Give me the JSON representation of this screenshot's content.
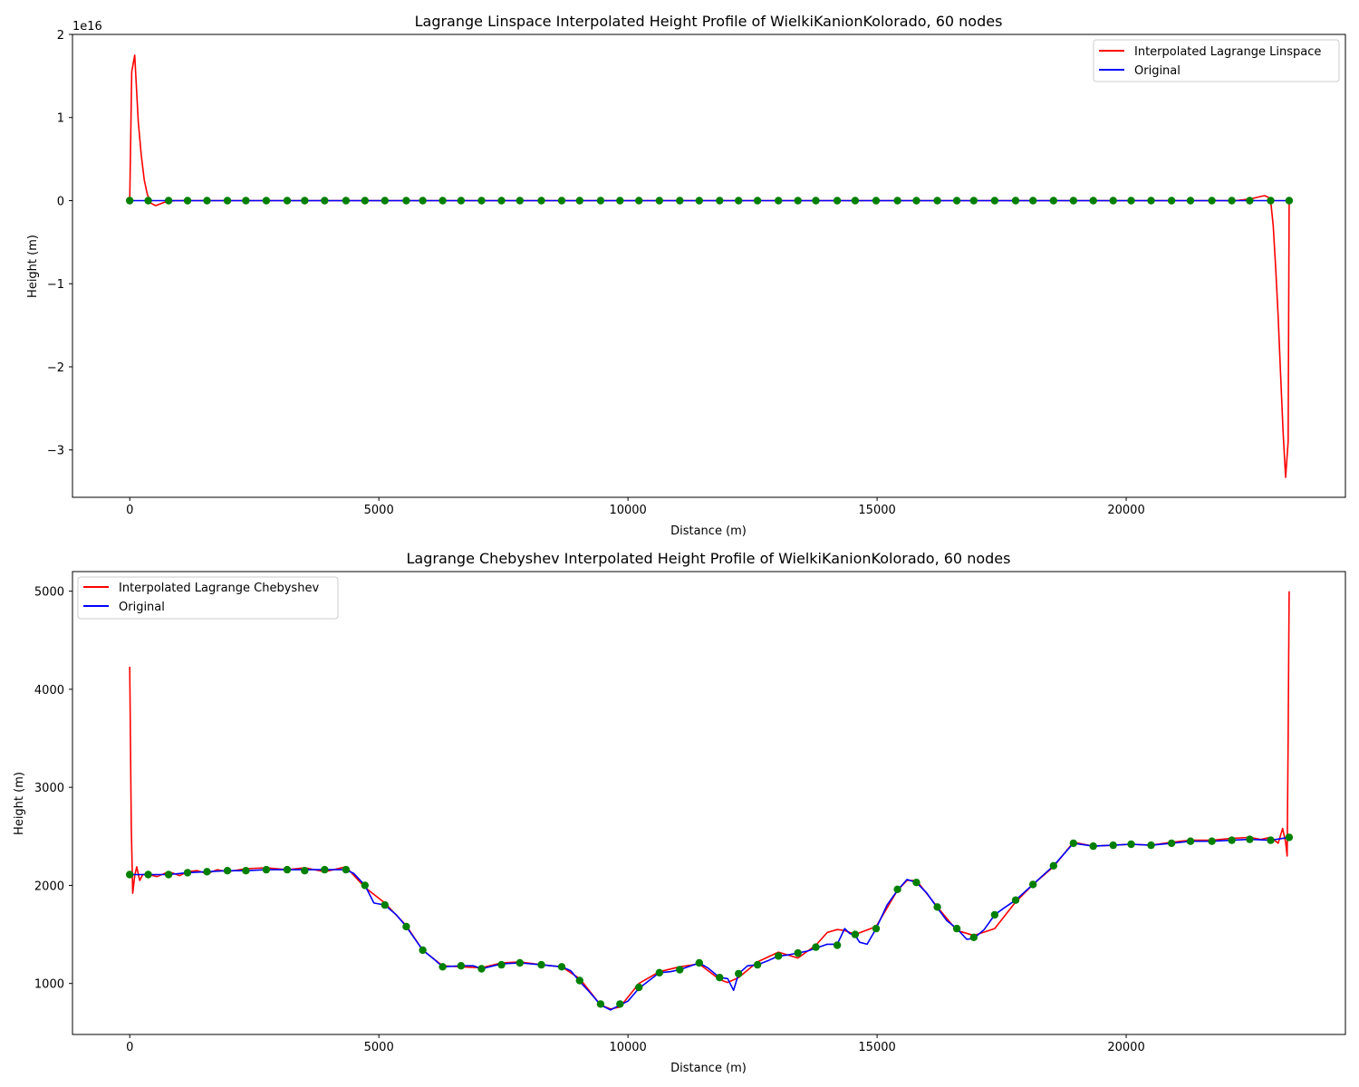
{
  "chart_data": [
    {
      "type": "line",
      "title": "Lagrange Linspace Interpolated Height Profile of WielkiKanionKolorado, 60 nodes",
      "xlabel": "Distance (m)",
      "ylabel": "Height (m)",
      "y_scale_label": "1e16",
      "xlim": [
        -1150,
        24400
      ],
      "ylim": [
        -3.57,
        2.0
      ],
      "x_ticks": [
        0,
        5000,
        10000,
        15000,
        20000
      ],
      "x_tick_labels": [
        "0",
        "5000",
        "10000",
        "15000",
        "20000"
      ],
      "y_ticks": [
        2,
        1,
        0,
        -1,
        -2,
        -3
      ],
      "y_tick_labels": [
        "2",
        "1",
        "0",
        "−1",
        "−2",
        "−3"
      ],
      "legend_position": "top-right",
      "grid": false,
      "series": [
        {
          "name": "Interpolated Lagrange Linspace",
          "color": "#ff0000",
          "x": [
            0,
            40,
            100,
            170,
            230,
            290,
            350,
            420,
            520,
            700,
            900,
            1500,
            5000,
            10000,
            15000,
            20000,
            22200,
            22500,
            22700,
            22780,
            22850,
            22900,
            22950,
            23000,
            23050,
            23100,
            23150,
            23200,
            23250,
            23270
          ],
          "y": [
            0,
            1.55,
            1.75,
            0.95,
            0.55,
            0.25,
            0.08,
            -0.03,
            -0.06,
            -0.02,
            0.0,
            0.0,
            0.0,
            0.0,
            0.0,
            0.0,
            0.0,
            0.02,
            0.05,
            0.06,
            0.04,
            0.0,
            -0.3,
            -0.8,
            -1.4,
            -2.1,
            -2.8,
            -3.33,
            -2.9,
            0.0
          ]
        },
        {
          "name": "Original",
          "color": "#0000ff",
          "x": [
            0,
            23270
          ],
          "y": [
            0,
            0
          ]
        }
      ],
      "nodes": {
        "color": "#008000",
        "x": [
          0,
          370,
          780,
          1160,
          1550,
          1960,
          2330,
          2740,
          3160,
          3510,
          3910,
          4340,
          4720,
          5120,
          5550,
          5880,
          6280,
          6650,
          7060,
          7460,
          7830,
          8260,
          8670,
          9030,
          9450,
          9840,
          10220,
          10630,
          11040,
          11430,
          11840,
          12220,
          12600,
          13020,
          13410,
          13770,
          14200,
          14560,
          14980,
          15410,
          15790,
          16210,
          16600,
          16940,
          17360,
          17780,
          18130,
          18540,
          18940,
          19340,
          19740,
          20100,
          20500,
          20910,
          21290,
          21720,
          22120,
          22480,
          22900,
          23270
        ],
        "y": [
          0,
          0,
          0,
          0,
          0,
          0,
          0,
          0,
          0,
          0,
          0,
          0,
          0,
          0,
          0,
          0,
          0,
          0,
          0,
          0,
          0,
          0,
          0,
          0,
          0,
          0,
          0,
          0,
          0,
          0,
          0,
          0,
          0,
          0,
          0,
          0,
          0,
          0,
          0,
          0,
          0,
          0,
          0,
          0,
          0,
          0,
          0,
          0,
          0,
          0,
          0,
          0,
          0,
          0,
          0,
          0,
          0,
          0,
          0,
          0
        ]
      }
    },
    {
      "type": "line",
      "title": "Lagrange Chebyshev Interpolated Height Profile of WielkiKanionKolorado, 60 nodes",
      "xlabel": "Distance (m)",
      "ylabel": "Height (m)",
      "xlim": [
        -1150,
        24400
      ],
      "ylim": [
        480,
        5200
      ],
      "x_ticks": [
        0,
        5000,
        10000,
        15000,
        20000
      ],
      "x_tick_labels": [
        "0",
        "5000",
        "10000",
        "15000",
        "20000"
      ],
      "y_ticks": [
        1000,
        2000,
        3000,
        4000,
        5000
      ],
      "y_tick_labels": [
        "1000",
        "2000",
        "3000",
        "4000",
        "5000"
      ],
      "legend_position": "top-left",
      "grid": false,
      "series": [
        {
          "name": "Interpolated Lagrange Chebyshev",
          "color": "#ff0000",
          "x": [
            0,
            30,
            60,
            100,
            140,
            200,
            260,
            370,
            550,
            780,
            1000,
            1160,
            1350,
            1550,
            1760,
            1960,
            2330,
            2740,
            3160,
            3510,
            3910,
            4340,
            4500,
            4720,
            5120,
            5550,
            5880,
            6280,
            6650,
            7060,
            7460,
            7830,
            8260,
            8670,
            9030,
            9450,
            9650,
            9840,
            10220,
            10630,
            11040,
            11430,
            11840,
            12000,
            12220,
            12600,
            13020,
            13410,
            13770,
            14000,
            14200,
            14350,
            14560,
            14980,
            15410,
            15600,
            15790,
            16210,
            16600,
            16940,
            17360,
            17780,
            18130,
            18540,
            18940,
            19340,
            19740,
            20100,
            20500,
            20910,
            21290,
            21720,
            22120,
            22480,
            22700,
            22900,
            23050,
            23140,
            23200,
            23230,
            23250,
            23270
          ],
          "y": [
            4230,
            2600,
            1920,
            2100,
            2190,
            2050,
            2110,
            2110,
            2090,
            2140,
            2100,
            2140,
            2150,
            2120,
            2160,
            2140,
            2170,
            2180,
            2160,
            2180,
            2140,
            2190,
            2100,
            1980,
            1820,
            1590,
            1340,
            1180,
            1170,
            1160,
            1210,
            1220,
            1190,
            1170,
            1050,
            780,
            740,
            760,
            1000,
            1120,
            1170,
            1200,
            1040,
            1010,
            1060,
            1220,
            1320,
            1260,
            1390,
            1520,
            1550,
            1540,
            1500,
            1580,
            1950,
            2050,
            2050,
            1780,
            1540,
            1490,
            1560,
            1830,
            2010,
            2190,
            2440,
            2400,
            2410,
            2420,
            2410,
            2440,
            2460,
            2460,
            2480,
            2490,
            2470,
            2490,
            2430,
            2580,
            2440,
            2300,
            3500,
            5000
          ]
        },
        {
          "name": "Original",
          "color": "#0000ff",
          "x": [
            0,
            370,
            780,
            1160,
            1550,
            1960,
            2330,
            2740,
            3160,
            3510,
            3910,
            4340,
            4500,
            4720,
            4900,
            5120,
            5350,
            5550,
            5880,
            6100,
            6280,
            6650,
            6900,
            7060,
            7300,
            7460,
            7830,
            8260,
            8670,
            8850,
            9030,
            9250,
            9450,
            9650,
            9840,
            10000,
            10220,
            10630,
            10850,
            11040,
            11430,
            11600,
            11840,
            12000,
            12120,
            12220,
            12400,
            12600,
            12800,
            13020,
            13200,
            13410,
            13600,
            13770,
            14000,
            14200,
            14350,
            14450,
            14560,
            14650,
            14800,
            14980,
            15200,
            15410,
            15600,
            15790,
            16000,
            16210,
            16400,
            16600,
            16800,
            16940,
            17150,
            17360,
            17550,
            17780,
            18130,
            18540,
            18940,
            19340,
            19740,
            20100,
            20500,
            20910,
            21290,
            21720,
            22120,
            22480,
            22900,
            23270
          ],
          "y": [
            2110,
            2110,
            2110,
            2130,
            2140,
            2150,
            2150,
            2160,
            2160,
            2160,
            2160,
            2160,
            2120,
            2000,
            1820,
            1800,
            1700,
            1580,
            1340,
            1250,
            1170,
            1180,
            1180,
            1150,
            1180,
            1200,
            1210,
            1190,
            1170,
            1130,
            1020,
            900,
            780,
            730,
            780,
            820,
            950,
            1110,
            1120,
            1140,
            1210,
            1160,
            1060,
            1050,
            930,
            1100,
            1180,
            1190,
            1230,
            1280,
            1290,
            1310,
            1330,
            1360,
            1400,
            1400,
            1560,
            1510,
            1490,
            1420,
            1400,
            1560,
            1800,
            1950,
            2060,
            2030,
            1920,
            1770,
            1640,
            1560,
            1450,
            1460,
            1550,
            1700,
            1770,
            1850,
            2010,
            2200,
            2430,
            2400,
            2410,
            2420,
            2410,
            2430,
            2450,
            2450,
            2460,
            2470,
            2460,
            2490
          ]
        }
      ],
      "nodes": {
        "color": "#008000",
        "x": [
          0,
          370,
          780,
          1160,
          1550,
          1960,
          2330,
          2740,
          3160,
          3510,
          3910,
          4340,
          4720,
          5120,
          5550,
          5880,
          6280,
          6650,
          7060,
          7460,
          7830,
          8260,
          8670,
          9030,
          9450,
          9840,
          10220,
          10630,
          11040,
          11430,
          11840,
          12220,
          12600,
          13020,
          13410,
          13770,
          14200,
          14560,
          14980,
          15410,
          15790,
          16210,
          16600,
          16940,
          17360,
          17780,
          18130,
          18540,
          18940,
          19340,
          19740,
          20100,
          20500,
          20910,
          21290,
          21720,
          22120,
          22480,
          22900,
          23270
        ],
        "y": [
          2110,
          2110,
          2110,
          2130,
          2140,
          2150,
          2150,
          2160,
          2160,
          2150,
          2160,
          2160,
          2000,
          1800,
          1580,
          1340,
          1170,
          1180,
          1150,
          1190,
          1210,
          1190,
          1170,
          1030,
          790,
          790,
          960,
          1110,
          1140,
          1210,
          1060,
          1100,
          1190,
          1280,
          1310,
          1370,
          1390,
          1500,
          1560,
          1960,
          2030,
          1780,
          1560,
          1470,
          1700,
          1850,
          2010,
          2200,
          2430,
          2400,
          2410,
          2420,
          2410,
          2430,
          2450,
          2450,
          2460,
          2470,
          2460,
          2490
        ]
      }
    }
  ]
}
